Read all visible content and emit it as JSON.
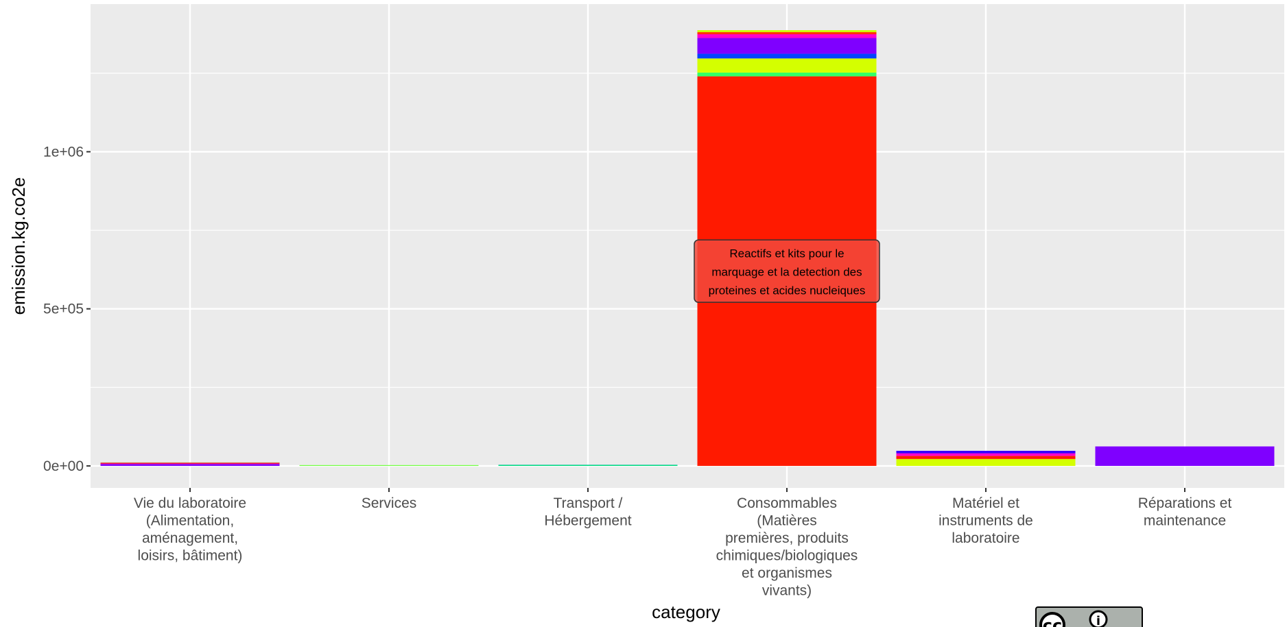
{
  "chart_data": {
    "type": "bar",
    "stacked": true,
    "xlabel": "category",
    "ylabel": "emission.kg.co2e",
    "ylim": [
      -70000,
      1470000
    ],
    "grid": true,
    "legend": "none",
    "y_ticks": [
      {
        "value": 0,
        "label": "0e+00"
      },
      {
        "value": 500000,
        "label": "5e+05"
      },
      {
        "value": 1000000,
        "label": "1e+06"
      }
    ],
    "categories": [
      {
        "label": [
          "Vie du laboratoire",
          "(Alimentation,",
          "aménagement,",
          "loisirs, bâtiment)"
        ],
        "segments": [
          {
            "value": 6000,
            "color": "#7f00ff"
          },
          {
            "value": 3000,
            "color": "#ff0066"
          },
          {
            "value": 2000,
            "color": "#cc6633"
          }
        ]
      },
      {
        "label": [
          "Services"
        ],
        "segments": [
          {
            "value": 2500,
            "color": "#66ff33"
          }
        ]
      },
      {
        "label": [
          "Transport /",
          "Hébergement"
        ],
        "segments": [
          {
            "value": 3000,
            "color": "#00e676"
          },
          {
            "value": 1000,
            "color": "#33ccaa"
          }
        ]
      },
      {
        "label": [
          "Consommables",
          "(Matières",
          "premières, produits",
          "chimiques/biologiques",
          "et organismes",
          "vivants)"
        ],
        "segments": [
          {
            "value": 1240000,
            "color": "#ff1a00"
          },
          {
            "value": 12000,
            "color": "#33ff66"
          },
          {
            "value": 45000,
            "color": "#d4ff00"
          },
          {
            "value": 15000,
            "color": "#0044ff"
          },
          {
            "value": 50000,
            "color": "#7f00ff"
          },
          {
            "value": 12000,
            "color": "#ff00cc"
          },
          {
            "value": 7000,
            "color": "#ff3300"
          },
          {
            "value": 6000,
            "color": "#ccff00"
          }
        ]
      },
      {
        "label": [
          "Matériel et",
          "instruments de",
          "laboratoire"
        ],
        "segments": [
          {
            "value": 22000,
            "color": "#d4ff00"
          },
          {
            "value": 10000,
            "color": "#ff1a00"
          },
          {
            "value": 8000,
            "color": "#ff00cc"
          },
          {
            "value": 8000,
            "color": "#3300ff"
          }
        ]
      },
      {
        "label": [
          "Réparations et",
          "maintenance"
        ],
        "segments": [
          {
            "value": 62000,
            "color": "#7f00ff"
          }
        ]
      }
    ],
    "annotation": {
      "category_index": 3,
      "y": 620000,
      "lines": [
        "Reactifs et kits pour le",
        "marquage et la detection des",
        "proteines et acides nucleiques"
      ]
    }
  },
  "license_badge": {
    "icon": "cc-by-license-icon",
    "glyph_cc": "cc",
    "glyph_by": "i"
  }
}
